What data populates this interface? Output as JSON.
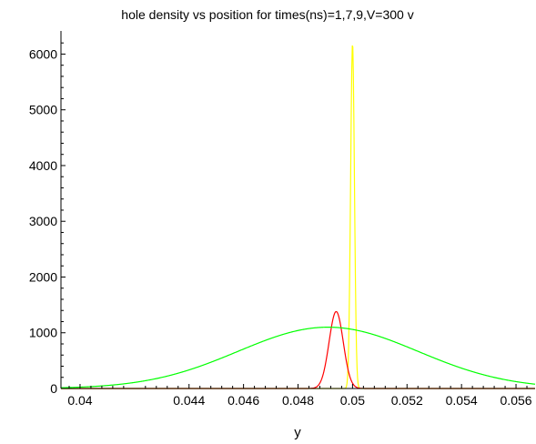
{
  "chart_data": {
    "type": "line",
    "title": "hole density vs position for times(ns)=1,7,9,V=300 v",
    "xlabel": "y",
    "ylabel": "",
    "xlim": [
      0.0393,
      0.0567
    ],
    "ylim": [
      0,
      6350
    ],
    "x_ticks": [
      0.04,
      0.044,
      0.046,
      0.048,
      0.05,
      0.052,
      0.054,
      0.056
    ],
    "x_tick_labels": [
      "0.04",
      "0.044",
      "0.046",
      "0.048",
      "0.05",
      "0.052",
      "0.054",
      "0.056"
    ],
    "y_ticks": [
      0,
      1000,
      2000,
      3000,
      4000,
      5000,
      6000
    ],
    "y_tick_labels": [
      "0",
      "1000",
      "2000",
      "3000",
      "4000",
      "5000",
      "6000"
    ],
    "grid": false,
    "legend": "none",
    "series": [
      {
        "color": "#ffff00",
        "shape": "gaussian",
        "center": 0.05,
        "peak": 6200,
        "sigma": 7e-05
      },
      {
        "color": "#ff0000",
        "shape": "gaussian",
        "center": 0.0494,
        "peak": 1380,
        "sigma": 0.00026
      },
      {
        "color": "#00ff00",
        "shape": "gaussian",
        "center": 0.0491,
        "peak": 1100,
        "sigma": 0.0033
      }
    ]
  }
}
